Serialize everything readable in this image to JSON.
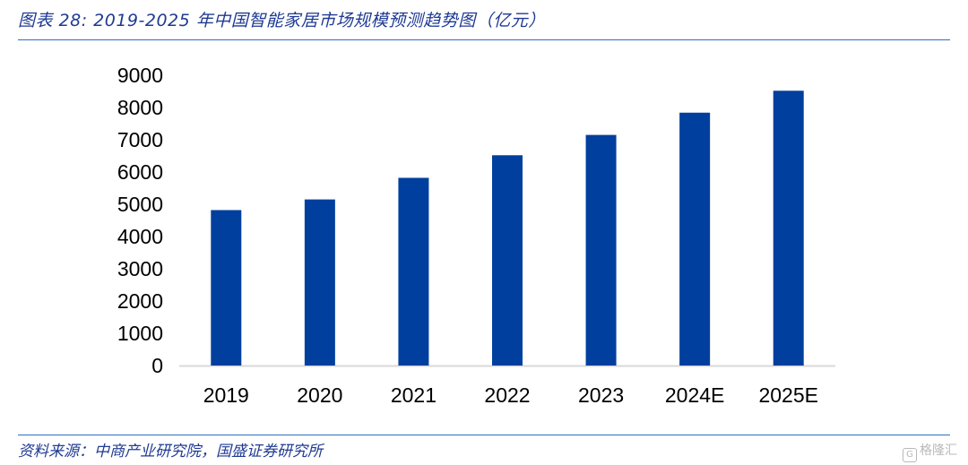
{
  "figure": {
    "title": "图表 28:  2019-2025 年中国智能家居市场规模预测趋势图（亿元）",
    "source": "资料来源：中商产业研究院，国盛证券研究所",
    "watermark_icon": "G-logo-icon",
    "watermark_text": "格隆汇"
  },
  "colors": {
    "bar": "#003f9e",
    "axis": "#d9d9d9",
    "rule": "#2f6ec2",
    "title": "#1f3a93"
  },
  "chart_data": {
    "type": "bar",
    "title": "",
    "xlabel": "",
    "ylabel": "",
    "categories": [
      "2019",
      "2020",
      "2021",
      "2022",
      "2023",
      "2024E",
      "2025E"
    ],
    "values": [
      4820,
      5150,
      5820,
      6520,
      7150,
      7840,
      8520
    ],
    "ylim": [
      0,
      9000
    ],
    "yticks": [
      0,
      1000,
      2000,
      3000,
      4000,
      5000,
      6000,
      7000,
      8000,
      9000
    ],
    "grid": false,
    "legend": "none"
  }
}
